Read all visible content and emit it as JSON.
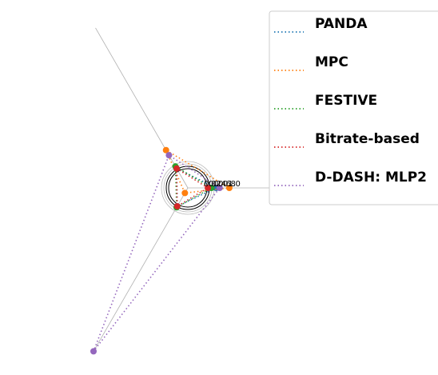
{
  "chart_data": {
    "type": "radar",
    "axes_count": 3,
    "radial_ticks": [
      "0.0",
      "0.2",
      "0.4",
      "0.6",
      "0.8",
      "1.0"
    ],
    "rlim": [
      0,
      8
    ],
    "grid": true,
    "legend_position": "top-right",
    "series": [
      {
        "name": "PANDA",
        "color": "#1f77b4",
        "values": [
          1.2,
          0.95,
          0.9
        ]
      },
      {
        "name": "MPC",
        "color": "#ff7f0e",
        "values": [
          1.76,
          1.85,
          0.25
        ]
      },
      {
        "name": "FESTIVE",
        "color": "#2ca02c",
        "values": [
          1.0,
          1.05,
          0.95
        ]
      },
      {
        "name": "Bitrate-based",
        "color": "#d62728",
        "values": [
          0.85,
          0.95,
          0.9
        ]
      },
      {
        "name": "D-DASH: MLP2",
        "color": "#9467bd",
        "values": [
          1.35,
          1.6,
          8.0
        ]
      }
    ]
  }
}
